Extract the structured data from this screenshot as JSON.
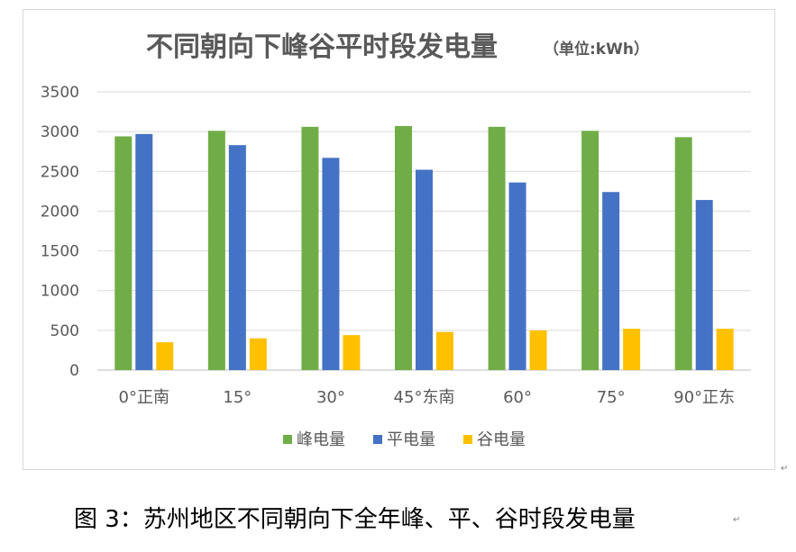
{
  "chart_data": {
    "type": "bar",
    "title": "不同朝向下峰谷平时段发电量",
    "title_unit": "（单位:kWh）",
    "categories": [
      "0°正南",
      "15°",
      "30°",
      "45°东南",
      "60°",
      "75°",
      "90°正东"
    ],
    "series": [
      {
        "name": "峰电量",
        "color": "#70ad47",
        "values": [
          2940,
          3010,
          3060,
          3070,
          3060,
          3010,
          2930
        ]
      },
      {
        "name": "平电量",
        "color": "#4472c4",
        "values": [
          2970,
          2830,
          2670,
          2520,
          2360,
          2240,
          2140
        ]
      },
      {
        "name": "谷电量",
        "color": "#ffc000",
        "values": [
          350,
          400,
          440,
          480,
          500,
          520,
          520
        ]
      }
    ],
    "yticks": [
      "0",
      "500",
      "1000",
      "1500",
      "2000",
      "2500",
      "3000",
      "3500"
    ],
    "ylim": [
      0,
      3500
    ],
    "grid": true,
    "legend": "bottom"
  },
  "caption": "图 3：苏州地区不同朝向下全年峰、平、谷时段发电量",
  "marks": {
    "paragraph": "↵"
  }
}
